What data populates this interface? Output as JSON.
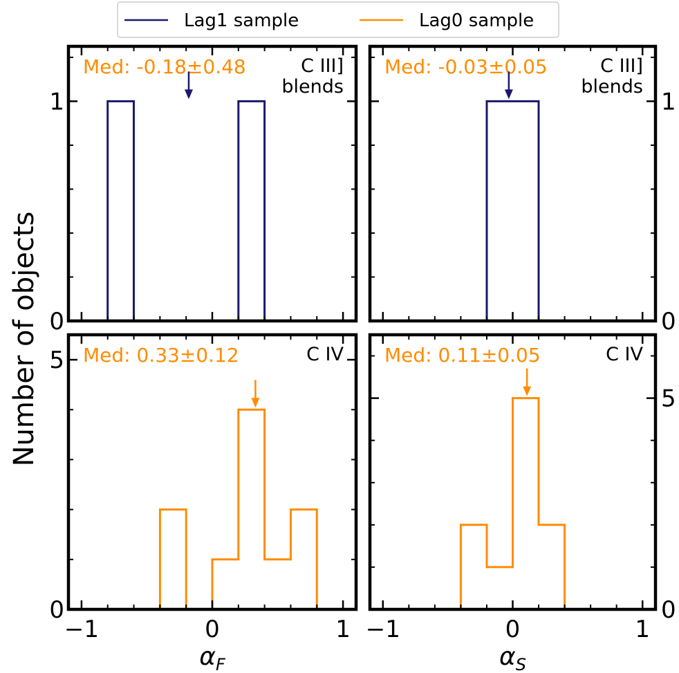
{
  "figure": {
    "ylabel": "Number of objects",
    "legend": {
      "placement": "top-center",
      "entries": [
        {
          "label": "Lag1 sample",
          "color": "#191970"
        },
        {
          "label": "Lag0 sample",
          "color": "#FF8C00"
        }
      ]
    }
  },
  "chart_data": [
    {
      "type": "histogram",
      "panel": "top-left",
      "line_label": [
        "C III]",
        "blends"
      ],
      "xlabel": "",
      "xlim": [
        -1.1,
        1.1
      ],
      "ylim": [
        0,
        1.25
      ],
      "xticks": [
        -1,
        0,
        1
      ],
      "yticks": [
        0,
        1
      ],
      "ytick_side": "left",
      "show_xtick_labels": false,
      "color": "#191970",
      "bins": [
        {
          "x0": -0.8,
          "x1": -0.6,
          "count": 1
        },
        {
          "x0": 0.2,
          "x1": 0.4,
          "count": 1
        }
      ],
      "median": {
        "value": -0.18,
        "err": 0.48,
        "text": "Med: -0.18±0.48",
        "color": "#191970"
      }
    },
    {
      "type": "histogram",
      "panel": "top-right",
      "line_label": [
        "C III]",
        "blends"
      ],
      "xlabel": "",
      "xlim": [
        -1.1,
        1.1
      ],
      "ylim": [
        0,
        1.25
      ],
      "xticks": [
        -1,
        0,
        1
      ],
      "yticks": [
        0,
        1
      ],
      "ytick_side": "right",
      "show_xtick_labels": false,
      "color": "#191970",
      "bins": [
        {
          "x0": -0.2,
          "x1": 0.2,
          "count": 1
        }
      ],
      "median": {
        "value": -0.03,
        "err": 0.05,
        "text": "Med: -0.03±0.05",
        "color": "#191970"
      }
    },
    {
      "type": "histogram",
      "panel": "bottom-left",
      "line_label": [
        "C IV"
      ],
      "xlabel": "αF",
      "xlim": [
        -1.1,
        1.1
      ],
      "ylim": [
        0,
        5.5
      ],
      "xticks": [
        -1,
        0,
        1
      ],
      "yticks": [
        0,
        5
      ],
      "ytick_side": "left",
      "show_xtick_labels": true,
      "color": "#FF8C00",
      "bins": [
        {
          "x0": -0.4,
          "x1": -0.2,
          "count": 2
        },
        {
          "x0": 0.0,
          "x1": 0.2,
          "count": 1
        },
        {
          "x0": 0.2,
          "x1": 0.4,
          "count": 4
        },
        {
          "x0": 0.4,
          "x1": 0.6,
          "count": 1
        },
        {
          "x0": 0.6,
          "x1": 0.8,
          "count": 2
        }
      ],
      "median": {
        "value": 0.33,
        "err": 0.12,
        "text": "Med: 0.33±0.12",
        "color": "#FF8C00"
      }
    },
    {
      "type": "histogram",
      "panel": "bottom-right",
      "line_label": [
        "C IV"
      ],
      "xlabel": "αS",
      "xlim": [
        -1.1,
        1.1
      ],
      "ylim": [
        0,
        6.5
      ],
      "xticks": [
        -1,
        0,
        1
      ],
      "yticks": [
        0,
        5
      ],
      "ytick_side": "right",
      "show_xtick_labels": true,
      "color": "#FF8C00",
      "bins": [
        {
          "x0": -0.4,
          "x1": -0.2,
          "count": 2
        },
        {
          "x0": -0.2,
          "x1": 0.0,
          "count": 1
        },
        {
          "x0": 0.0,
          "x1": 0.2,
          "count": 5
        },
        {
          "x0": 0.2,
          "x1": 0.4,
          "count": 2
        }
      ],
      "median": {
        "value": 0.11,
        "err": 0.05,
        "text": "Med: 0.11±0.05",
        "color": "#FF8C00"
      }
    }
  ]
}
